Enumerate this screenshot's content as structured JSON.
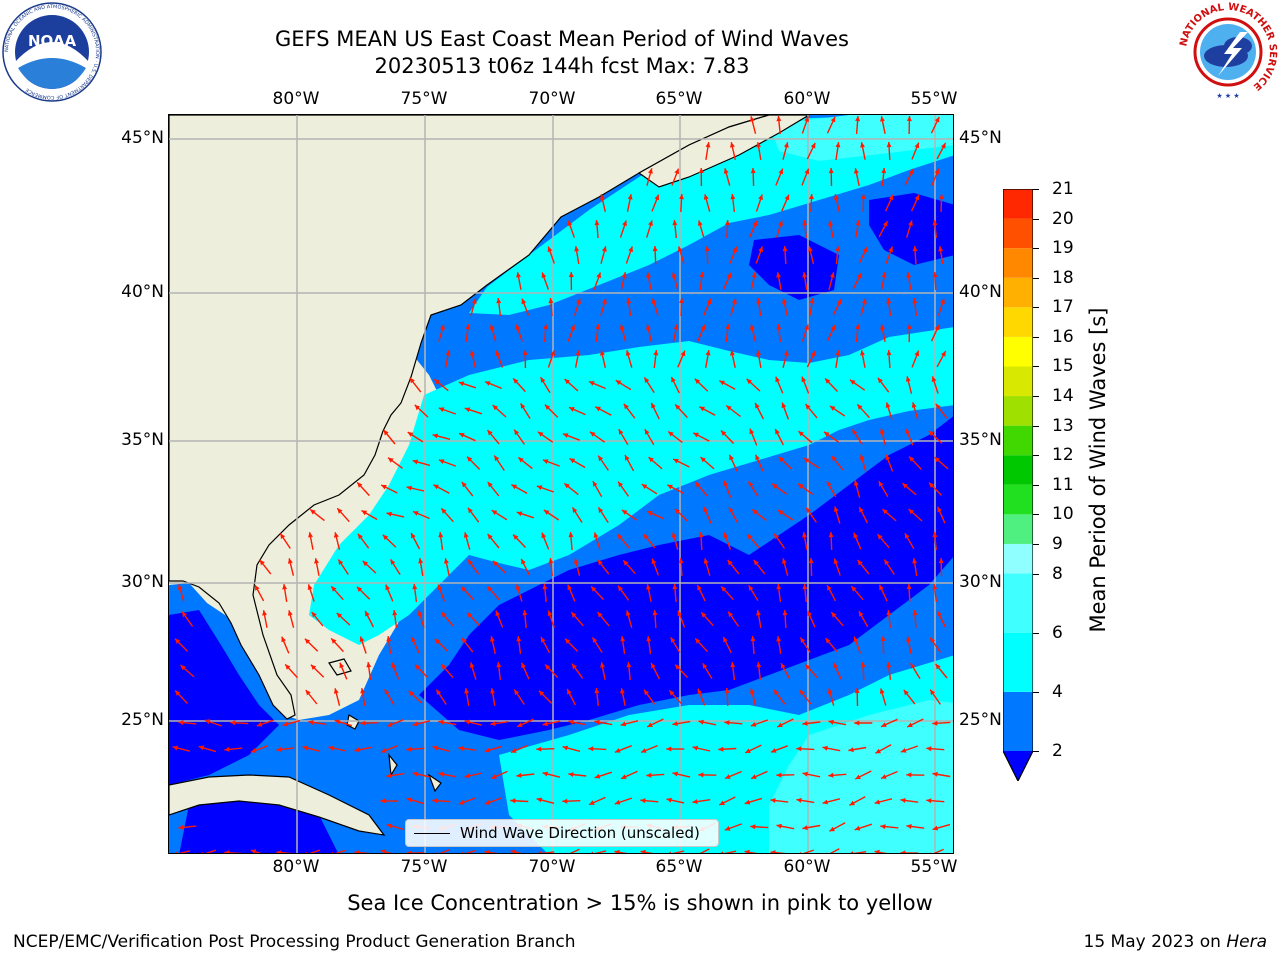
{
  "header": {
    "title_line1": "GEFS MEAN US East Coast Mean Period of Wind Waves",
    "title_line2": "20230513 t06z 144h fcst   Max: 7.83"
  },
  "logos": {
    "noaa_text": "NOAA",
    "noaa_ring_text": "NATIONAL OCEANIC AND ATMOSPHERIC ADMINISTRATION · U.S. DEPARTMENT OF COMMERCE",
    "nws_ring_text": "NATIONAL WEATHER SERVICE"
  },
  "map": {
    "projection": "equirectangular",
    "lon_range": [
      -85,
      -54.2
    ],
    "lat_range": [
      20.3,
      46.1
    ],
    "longitude_labels": [
      "80°W",
      "75°W",
      "70°W",
      "65°W",
      "60°W",
      "55°W"
    ],
    "latitude_labels": [
      "45°N",
      "40°N",
      "35°N",
      "30°N",
      "25°N"
    ],
    "gridlines": true,
    "colors": {
      "land": "#eeeedc",
      "coast": "#000000",
      "grid": "#b4b4b4",
      "arrows": "#ff1a00"
    },
    "legend_label": "Wind Wave Direction (unscaled)",
    "legend_position": "lower-center"
  },
  "colorbar": {
    "label": "Mean Period of Wind Waves [s]",
    "ticks": [
      "2",
      "4",
      "6",
      "8",
      "9",
      "10",
      "11",
      "12",
      "13",
      "14",
      "15",
      "16",
      "17",
      "18",
      "19",
      "20",
      "21"
    ],
    "tick_values": [
      2,
      4,
      6,
      8,
      9,
      10,
      11,
      12,
      13,
      14,
      15,
      16,
      17,
      18,
      19,
      20,
      21
    ],
    "colors": [
      "#0078ff",
      "#00ffff",
      "#40ffff",
      "#90ffff",
      "#50f080",
      "#20e020",
      "#00c800",
      "#40d800",
      "#a0e000",
      "#d8e800",
      "#ffff00",
      "#ffd800",
      "#ffb000",
      "#ff8800",
      "#ff5000",
      "#ff2800"
    ],
    "under_color": "#0000ff",
    "extend": "min"
  },
  "chart_data": {
    "type": "heatmap",
    "variable": "Mean Period of Wind Waves [s]",
    "max_value": 7.83,
    "bands": [
      {
        "range": "<2",
        "color": "#0000ff"
      },
      {
        "range": "2-4",
        "color": "#0078ff"
      },
      {
        "range": "4-6",
        "color": "#00ffff"
      },
      {
        "range": "6-8",
        "color": "#40ffff"
      }
    ]
  },
  "footer": {
    "sea_ice_note": "Sea Ice Concentration > 15% is shown in pink to yellow",
    "left": "NCEP/EMC/Verification Post Processing Product Generation Branch",
    "right_date": "15 May 2023 on ",
    "right_machine": "Hera"
  }
}
